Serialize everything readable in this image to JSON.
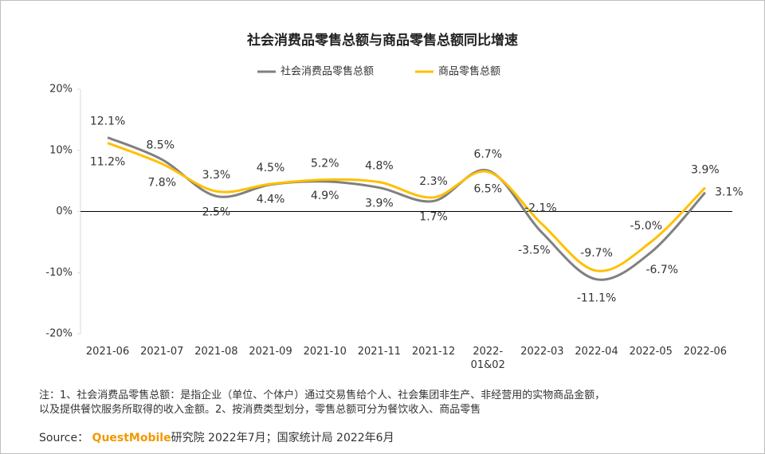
{
  "chart_data": {
    "type": "line",
    "title": "社会消费品零售总额与商品零售总额同比增速",
    "categories": [
      "2021-06",
      "2021-07",
      "2021-08",
      "2021-09",
      "2021-10",
      "2021-11",
      "2021-12",
      "2022-01&02",
      "2022-03",
      "2022-04",
      "2022-05",
      "2022-06"
    ],
    "series": [
      {
        "name": "社会消费品零售总额",
        "color": "#808080",
        "values": [
          12.1,
          8.5,
          2.5,
          4.4,
          4.9,
          3.9,
          1.7,
          6.7,
          -3.5,
          -11.1,
          -6.7,
          3.1
        ],
        "value_labels": [
          "12.1%",
          "8.5%",
          "2.5%",
          "4.4%",
          "4.9%",
          "3.9%",
          "1.7%",
          "6.7%",
          "-3.5%",
          "-11.1%",
          "-6.7%",
          "3.1%"
        ]
      },
      {
        "name": "商品零售总额",
        "color": "#ffc000",
        "values": [
          11.2,
          7.8,
          3.3,
          4.5,
          5.2,
          4.8,
          2.3,
          6.5,
          -2.1,
          -9.7,
          -5.0,
          3.9
        ],
        "value_labels": [
          "11.2%",
          "7.8%",
          "3.3%",
          "4.5%",
          "5.2%",
          "4.8%",
          "2.3%",
          "6.5%",
          "-2.1%",
          "-9.7%",
          "-5.0%",
          "3.9%"
        ]
      }
    ],
    "ylim": [
      -20,
      20
    ],
    "yticks": [
      {
        "value": -20,
        "label": "-20%"
      },
      {
        "value": -10,
        "label": "-10%"
      },
      {
        "value": 0,
        "label": "0%"
      },
      {
        "value": 10,
        "label": "10%"
      },
      {
        "value": 20,
        "label": "20%"
      }
    ],
    "legend": "top",
    "note": [
      "注：1、社会消费品零售总额：是指企业（单位、个体户）通过交易售给个人、社会集团非生产、非经营用的实物商品金额，",
      "以及提供餐饮服务所取得的收入金额。2、按消费类型划分，零售总额可分为餐饮收入、商品零售"
    ],
    "source_label": "Source：",
    "source_brand": "QuestMobile",
    "source_text": "研究院 2022年7月；国家统计局 2022年6月"
  }
}
